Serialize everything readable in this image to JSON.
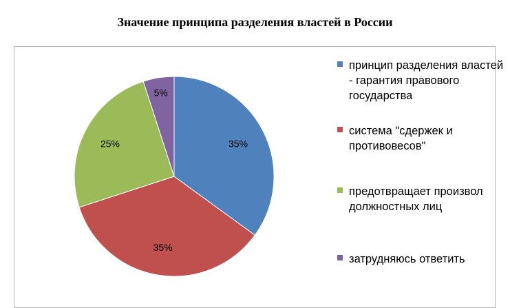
{
  "chart_data": {
    "type": "pie",
    "title": "Значение принципа разделения властей в России",
    "legend_position": "right",
    "slices": [
      {
        "label": "принцип разделения властей - гарантия правового государства",
        "value": 35,
        "data_label": "35%",
        "color": "#4f81bd"
      },
      {
        "label": "система \"сдержек и противовесов\"",
        "value": 35,
        "data_label": "35%",
        "color": "#c0504d"
      },
      {
        "label": "предотвращает произвол должностных лиц",
        "value": 25,
        "data_label": "25%",
        "color": "#9bbb59"
      },
      {
        "label": "затрудняюсь ответить",
        "value": 5,
        "data_label": "5%",
        "color": "#8064a2"
      }
    ]
  }
}
